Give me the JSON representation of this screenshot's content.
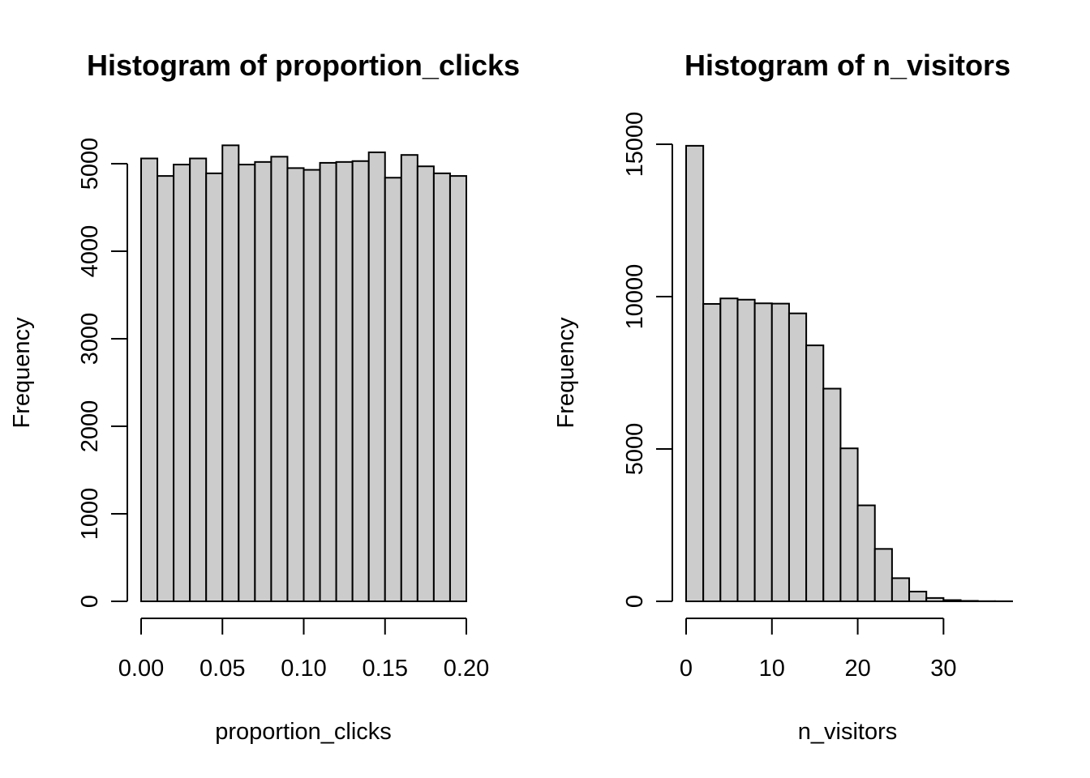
{
  "chart_data": [
    {
      "type": "bar",
      "title": "Histogram of proportion_clicks",
      "xlabel": "proportion_clicks",
      "ylabel": "Frequency",
      "bin_edges": [
        0.0,
        0.01,
        0.02,
        0.03,
        0.04,
        0.05,
        0.06,
        0.07,
        0.08,
        0.09,
        0.1,
        0.11,
        0.12,
        0.13,
        0.14,
        0.15,
        0.16,
        0.17,
        0.18,
        0.19,
        0.2
      ],
      "values": [
        5060,
        4860,
        4990,
        5060,
        4890,
        5210,
        4990,
        5020,
        5080,
        4950,
        4930,
        5010,
        5020,
        5030,
        5130,
        4840,
        5100,
        4970,
        4890,
        4860
      ],
      "xlim": [
        0.0,
        0.2
      ],
      "ylim": [
        0,
        5200
      ],
      "x_ticks": [
        0.0,
        0.05,
        0.1,
        0.15,
        0.2
      ],
      "x_tick_labels": [
        "0.00",
        "0.05",
        "0.10",
        "0.15",
        "0.20"
      ],
      "y_ticks": [
        0,
        1000,
        2000,
        3000,
        4000,
        5000
      ],
      "y_tick_labels": [
        "0",
        "1000",
        "2000",
        "3000",
        "4000",
        "5000"
      ],
      "grid": false
    },
    {
      "type": "bar",
      "title": "Histogram of n_visitors",
      "xlabel": "n_visitors",
      "ylabel": "Frequency",
      "bin_edges": [
        0,
        2,
        4,
        6,
        8,
        10,
        12,
        14,
        16,
        18,
        20,
        22,
        24,
        26,
        28,
        30,
        32,
        34,
        36,
        38
      ],
      "values": [
        14950,
        9760,
        9940,
        9900,
        9780,
        9770,
        9450,
        8400,
        6980,
        5020,
        3150,
        1720,
        760,
        320,
        110,
        40,
        15,
        5,
        3
      ],
      "xlim": [
        0,
        38
      ],
      "ylim": [
        0,
        15000
      ],
      "x_ticks": [
        0,
        10,
        20,
        30
      ],
      "x_tick_labels": [
        "0",
        "10",
        "20",
        "30"
      ],
      "y_ticks": [
        0,
        5000,
        10000,
        15000
      ],
      "y_tick_labels": [
        "0",
        "5000",
        "10000",
        "15000"
      ],
      "grid": false
    }
  ]
}
